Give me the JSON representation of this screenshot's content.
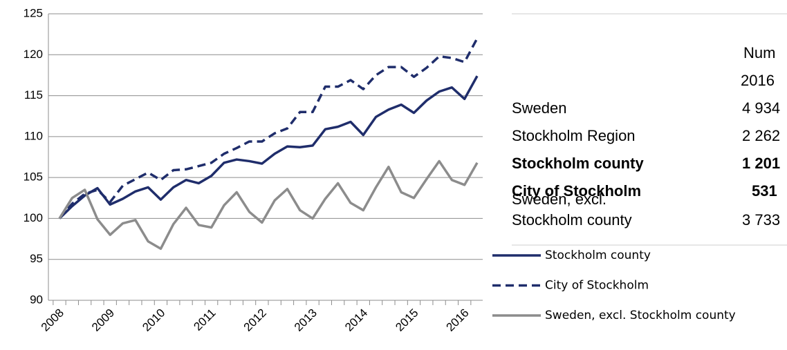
{
  "chart_data": {
    "type": "line",
    "categories": [
      "2008",
      null,
      null,
      null,
      "2009",
      null,
      null,
      null,
      "2010",
      null,
      null,
      null,
      "2011",
      null,
      null,
      null,
      "2012",
      null,
      null,
      null,
      "2013",
      null,
      null,
      null,
      "2014",
      null,
      null,
      null,
      "2015",
      null,
      null,
      null,
      "2016",
      null
    ],
    "series": [
      {
        "name": "Stockholm county",
        "color": "#1f2d6b",
        "dashed": false,
        "values": [
          100,
          101.5,
          102.8,
          103.7,
          101.7,
          102.4,
          103.3,
          103.8,
          102.3,
          103.8,
          104.7,
          104.3,
          105.2,
          106.8,
          107.2,
          107.0,
          106.7,
          107.9,
          108.8,
          108.7,
          108.9,
          110.9,
          111.2,
          111.8,
          110.2,
          112.4,
          113.3,
          113.9,
          112.9,
          114.4,
          115.5,
          116.0,
          114.6,
          117.4
        ]
      },
      {
        "name": "City of Stockholm",
        "color": "#1f2d6b",
        "dashed": true,
        "values": [
          100,
          101.8,
          103,
          103.5,
          102,
          104,
          104.8,
          105.6,
          104.7,
          105.9,
          106,
          106.4,
          106.8,
          107.9,
          108.6,
          109.4,
          109.4,
          110.4,
          111,
          113,
          113,
          116.1,
          116.1,
          116.9,
          115.8,
          117.5,
          118.5,
          118.5,
          117.3,
          118.4,
          119.8,
          119.6,
          119.1,
          122.0
        ]
      },
      {
        "name": "Sweden, excl. Stockholm county",
        "color": "#8c8c8c",
        "dashed": false,
        "values": [
          100,
          102.5,
          103.5,
          99.9,
          98,
          99.4,
          99.8,
          97.2,
          96.3,
          99.3,
          101.3,
          99.2,
          98.9,
          101.6,
          103.2,
          100.8,
          99.5,
          102.2,
          103.6,
          101,
          100,
          102.4,
          104.3,
          101.9,
          101,
          103.8,
          106.3,
          103.2,
          102.5,
          104.8,
          107,
          104.7,
          104.1,
          106.8
        ]
      }
    ],
    "ylim": [
      90,
      125
    ],
    "yticks": [
      90,
      95,
      100,
      105,
      110,
      115,
      120,
      125
    ],
    "grid": true
  },
  "table": {
    "header": [
      "Num",
      "2016"
    ],
    "rows": [
      {
        "label": [
          "Sweden"
        ],
        "value": "4 934",
        "bold": false
      },
      {
        "label": [
          "Stockholm Region"
        ],
        "value": "2 262",
        "bold": false
      },
      {
        "label": [
          "Stockholm county"
        ],
        "value": "1 201",
        "bold": true
      },
      {
        "label": [
          "City of Stockholm"
        ],
        "value": "531",
        "bold": true
      },
      {
        "label": [
          "Sweden, excl.",
          "Stockholm county"
        ],
        "value": "3 733",
        "bold": false
      }
    ]
  }
}
